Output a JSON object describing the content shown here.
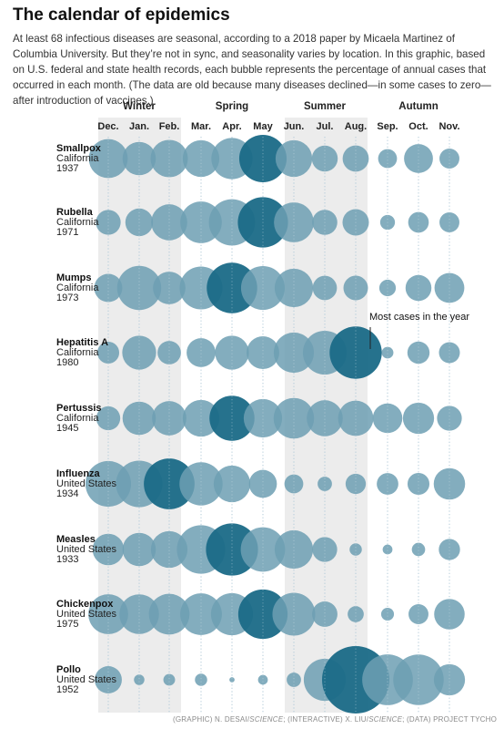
{
  "title": "The calendar of epidemics",
  "intro": "At least 68 infectious diseases are seasonal, according to a 2018 paper by Micaela Martinez of Columbia University. But they’re not in sync, and seasonality varies by location. In this graphic, based on U.S. federal and state health records, each bubble represents the percentage of annual cases that occurred in each month. (The data are old because many diseases declined—in some cases to zero—after introduction of vaccines.)",
  "credit": {
    "prefix": "(GRAPHIC) N. DESAI/",
    "science1": "SCIENCE",
    "middle": "; (INTERACTIVE) X. LIU/",
    "science2": "SCIENCE",
    "suffix": "; (DATA) PROJECT TYCHO"
  },
  "colors": {
    "bubble": "#6d9fb3",
    "bubble_max": "#1a6a87",
    "band": "#ececec",
    "dotted": "#8bb0c6"
  },
  "chart_data": {
    "type": "bubble",
    "value_unit": "percent of annual cases",
    "seasons": [
      {
        "name": "Winter",
        "months": [
          "Dec.",
          "Jan.",
          "Feb."
        ]
      },
      {
        "name": "Spring",
        "months": [
          "Mar.",
          "Apr.",
          "May"
        ]
      },
      {
        "name": "Summer",
        "months": [
          "Jun.",
          "Jul.",
          "Aug."
        ]
      },
      {
        "name": "Autumn",
        "months": [
          "Sep.",
          "Oct.",
          "Nov."
        ]
      }
    ],
    "months": [
      "Dec.",
      "Jan.",
      "Feb.",
      "Mar.",
      "Apr.",
      "May",
      "Jun.",
      "Jul.",
      "Aug.",
      "Sep.",
      "Oct.",
      "Nov."
    ],
    "shaded_seasons": [
      "Winter",
      "Summer"
    ],
    "rows": [
      {
        "disease": "Smallpox",
        "location": "California",
        "year": "1937",
        "values": [
          11.1,
          8.1,
          10.2,
          9.8,
          12.4,
          16.4,
          9.8,
          4.9,
          5.0,
          2.6,
          6.1,
          2.9
        ]
      },
      {
        "disease": "Rubella",
        "location": "California",
        "year": "1971",
        "values": [
          4.5,
          5.6,
          9.5,
          12.6,
          15.6,
          18.4,
          11.6,
          4.6,
          5.1,
          1.6,
          3.1,
          2.9
        ]
      },
      {
        "disease": "Mumps",
        "location": "California",
        "year": "1973",
        "values": [
          5.8,
          14.2,
          7.7,
          13.4,
          18.6,
          14.0,
          10.8,
          4.3,
          4.4,
          2.0,
          4.9,
          6.5
        ]
      },
      {
        "disease": "Hepatitis A",
        "location": "California",
        "year": "1980",
        "values": [
          3.5,
          8.4,
          4.0,
          6.1,
          8.4,
          7.8,
          11.8,
          14.0,
          19.9,
          1.0,
          3.6,
          3.2
        ]
      },
      {
        "disease": "Pertussis",
        "location": "California",
        "year": "1945",
        "values": [
          4.2,
          8.1,
          8.6,
          9.8,
          14.8,
          10.8,
          12.0,
          9.5,
          9.1,
          6.4,
          7.1,
          4.5
        ]
      },
      {
        "disease": "Influenza",
        "location": "United States",
        "year": "1934",
        "values": [
          15.2,
          15.8,
          18.8,
          13.6,
          9.8,
          5.7,
          2.6,
          1.5,
          3.0,
          3.4,
          3.5,
          7.2
        ]
      },
      {
        "disease": "Measles",
        "location": "United States",
        "year": "1933",
        "values": [
          7.2,
          8.1,
          9.8,
          17.1,
          19.8,
          14.4,
          10.8,
          4.5,
          1.1,
          0.7,
          1.3,
          3.3
        ]
      },
      {
        "disease": "Chickenpox",
        "location": "United States",
        "year": "1975",
        "values": [
          11.6,
          11.5,
          12.1,
          12.7,
          12.9,
          17.8,
          13.4,
          4.7,
          1.9,
          1.2,
          2.9,
          6.8
        ]
      },
      {
        "disease": "Pollo",
        "location": "United States",
        "year": "1952",
        "values": [
          5.4,
          0.8,
          1.0,
          1.1,
          0.2,
          0.7,
          1.5,
          12.9,
          33.1,
          18.8,
          18.6,
          7.1
        ]
      }
    ],
    "annotation": {
      "text": "Most cases in the year",
      "row": "Hepatitis A",
      "month": "Aug."
    }
  }
}
